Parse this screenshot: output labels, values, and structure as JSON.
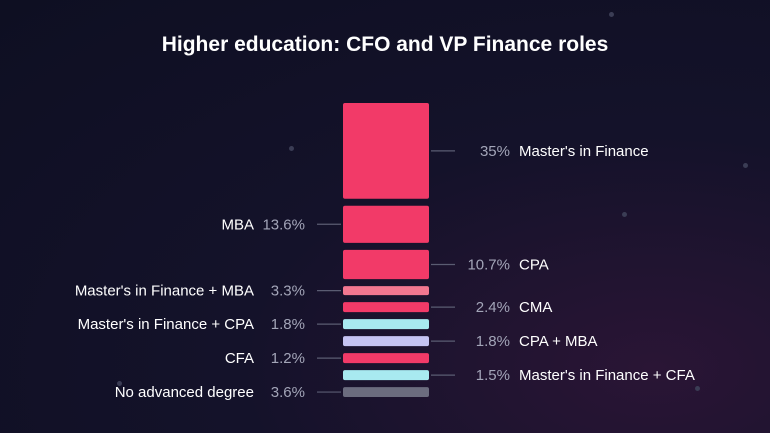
{
  "chart_data": {
    "type": "bar",
    "title": "Higher education: CFO and VP Finance roles",
    "unit": "%",
    "grid": false,
    "legend": "none",
    "categories": [
      {
        "label": "Master's in Finance",
        "value": 35,
        "value_text": "35%",
        "side": "right",
        "color": "#f23a68"
      },
      {
        "label": "MBA",
        "value": 13.6,
        "value_text": "13.6%",
        "side": "left",
        "color": "#f23a68"
      },
      {
        "label": "CPA",
        "value": 10.7,
        "value_text": "10.7%",
        "side": "right",
        "color": "#f23a68"
      },
      {
        "label": "Master's in Finance + MBA",
        "value": 3.3,
        "value_text": "3.3%",
        "side": "left",
        "color": "#f27790"
      },
      {
        "label": "CMA",
        "value": 2.4,
        "value_text": "2.4%",
        "side": "right",
        "color": "#f23a68"
      },
      {
        "label": "Master's in Finance + CPA",
        "value": 1.8,
        "value_text": "1.8%",
        "side": "left",
        "color": "#a8eaf0"
      },
      {
        "label": "CPA + MBA",
        "value": 1.8,
        "value_text": "1.8%",
        "side": "right",
        "color": "#c5c3f2"
      },
      {
        "label": "CFA",
        "value": 1.2,
        "value_text": "1.2%",
        "side": "left",
        "color": "#f23a68"
      },
      {
        "label": "Master's in Finance + CFA",
        "value": 1.5,
        "value_text": "1.5%",
        "side": "right",
        "color": "#a8eaf0"
      },
      {
        "label": "No advanced degree",
        "value": 3.6,
        "value_text": "3.6%",
        "side": "left",
        "color": "#6b6c7e"
      }
    ]
  }
}
